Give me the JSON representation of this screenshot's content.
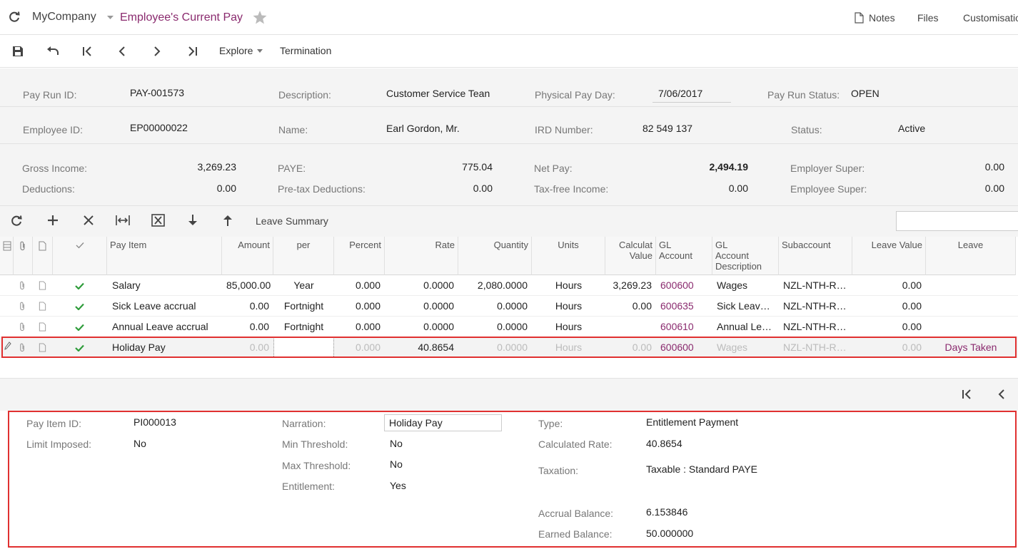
{
  "topbar": {
    "company": "MyCompany",
    "title": "Employee's Current Pay",
    "notes": "Notes",
    "files": "Files",
    "customisation": "Customisatio"
  },
  "toolbar": {
    "explore": "Explore",
    "termination": "Termination"
  },
  "form": {
    "pay_run_id_label": "Pay Run ID:",
    "pay_run_id": "PAY-001573",
    "description_label": "Description:",
    "description": "Customer Service Tean",
    "physical_pay_day_label": "Physical Pay Day:",
    "physical_pay_day": "7/06/2017",
    "pay_run_status_label": "Pay Run Status:",
    "pay_run_status": "OPEN",
    "employee_id_label": "Employee ID:",
    "employee_id": "EP00000022",
    "name_label": "Name:",
    "name": "Earl Gordon, Mr.",
    "ird_label": "IRD Number:",
    "ird": "82 549 137",
    "status_label": "Status:",
    "status": "Active"
  },
  "totals": {
    "gross_income_label": "Gross Income:",
    "gross_income": "3,269.23",
    "deductions_label": "Deductions:",
    "deductions": "0.00",
    "paye_label": "PAYE:",
    "paye": "775.04",
    "pretax_label": "Pre-tax Deductions:",
    "pretax": "0.00",
    "net_pay_label": "Net Pay:",
    "net_pay": "2,494.19",
    "taxfree_label": "Tax-free Income:",
    "taxfree": "0.00",
    "employer_super_label": "Employer Super:",
    "employer_super": "0.00",
    "employee_super_label": "Employee Super:",
    "employee_super": "0.00"
  },
  "grid_toolbar": {
    "leave_summary": "Leave Summary"
  },
  "grid": {
    "headers": {
      "pay_item": "Pay Item",
      "amount": "Amount",
      "per": "per",
      "percent": "Percent",
      "rate": "Rate",
      "quantity": "Quantity",
      "units": "Units",
      "calc_value_1": "Calculat",
      "calc_value_2": "Value",
      "gl_account_1": "GL",
      "gl_account_2": "Account",
      "gl_desc_1": "GL",
      "gl_desc_2": "Account",
      "gl_desc_3": "Description",
      "subaccount": "Subaccount",
      "leave_value": "Leave Value",
      "leave": "Leave"
    },
    "rows": [
      {
        "pay_item": "Salary",
        "amount": "85,000.00",
        "per": "Year",
        "percent": "0.000",
        "rate": "0.0000",
        "quantity": "2,080.0000",
        "units": "Hours",
        "calc_value": "3,269.23",
        "gl_account": "600600",
        "gl_desc": "Wages",
        "subaccount": "NZL-NTH-R…",
        "leave_value": "0.00",
        "leave": ""
      },
      {
        "pay_item": "Sick Leave accrual",
        "amount": "0.00",
        "per": "Fortnight",
        "percent": "0.000",
        "rate": "0.0000",
        "quantity": "0.0000",
        "units": "Hours",
        "calc_value": "0.00",
        "gl_account": "600635",
        "gl_desc": "Sick Leav…",
        "subaccount": "NZL-NTH-R…",
        "leave_value": "0.00",
        "leave": ""
      },
      {
        "pay_item": "Annual Leave accrual",
        "amount": "0.00",
        "per": "Fortnight",
        "percent": "0.000",
        "rate": "0.0000",
        "quantity": "0.0000",
        "units": "Hours",
        "calc_value": "",
        "gl_account": "600610",
        "gl_desc": "Annual Le…",
        "subaccount": "NZL-NTH-R…",
        "leave_value": "0.00",
        "leave": ""
      },
      {
        "pay_item": "Holiday Pay",
        "amount": "0.00",
        "per": "",
        "percent": "0.000",
        "rate": "40.8654",
        "quantity": "0.0000",
        "units": "Hours",
        "calc_value": "0.00",
        "gl_account": "600600",
        "gl_desc": "Wages",
        "subaccount": "NZL-NTH-R…",
        "leave_value": "0.00",
        "leave": "Days Taken"
      }
    ]
  },
  "detail": {
    "pay_item_id_label": "Pay Item ID:",
    "pay_item_id": "PI000013",
    "limit_imposed_label": "Limit Imposed:",
    "limit_imposed": "No",
    "narration_label": "Narration:",
    "narration": "Holiday Pay",
    "min_threshold_label": "Min Threshold:",
    "min_threshold": "No",
    "max_threshold_label": "Max Threshold:",
    "max_threshold": "No",
    "entitlement_label": "Entitlement:",
    "entitlement": "Yes",
    "type_label": "Type:",
    "type": "Entitlement Payment",
    "calc_rate_label": "Calculated Rate:",
    "calc_rate": "40.8654",
    "taxation_label": "Taxation:",
    "taxation": "Taxable : Standard PAYE",
    "accrual_balance_label": "Accrual Balance:",
    "accrual_balance": "6.153846",
    "earned_balance_label": "Earned Balance:",
    "earned_balance": "50.000000"
  },
  "colors": {
    "accent": "#8a2a6e",
    "check": "#2e9c3a",
    "highlight": "#e03030"
  }
}
